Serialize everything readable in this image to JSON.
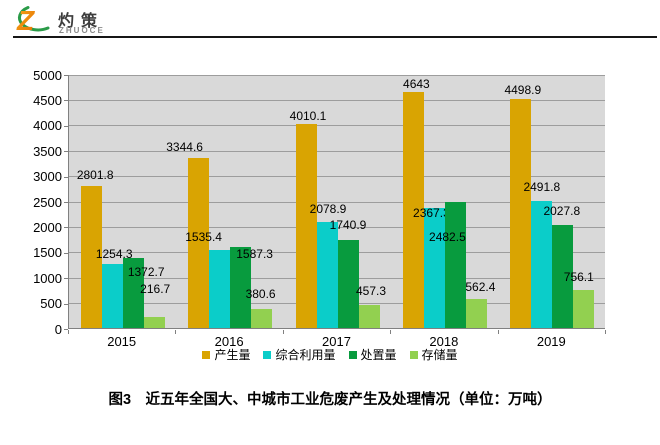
{
  "logo": {
    "name": "灼策",
    "subtitle": "ZHUOCE"
  },
  "chart_data": {
    "type": "bar",
    "categories": [
      "2015",
      "2016",
      "2017",
      "2018",
      "2019"
    ],
    "series": [
      {
        "name": "产生量",
        "color": "#d9a402",
        "values": [
          2801.8,
          3344.6,
          4010.1,
          4643,
          4498.9
        ]
      },
      {
        "name": "综合利用量",
        "color": "#0bcdc9",
        "values": [
          1254.3,
          1535.4,
          2078.9,
          2367.3,
          2491.8
        ]
      },
      {
        "name": "处置量",
        "color": "#089b3e",
        "values": [
          1372.7,
          1587.3,
          1740.9,
          2482.5,
          2027.8
        ]
      },
      {
        "name": "存储量",
        "color": "#92d050",
        "values": [
          216.7,
          380.6,
          457.3,
          562.4,
          756.1
        ]
      }
    ],
    "ylim": [
      0,
      5000
    ],
    "ytick_step": 500,
    "grid": true,
    "legend_position": "bottom",
    "plot_background": "#d9d9d9",
    "title": "图3　近五年全国大、中城市工业危废产生及处理情况（单位：万吨）"
  }
}
